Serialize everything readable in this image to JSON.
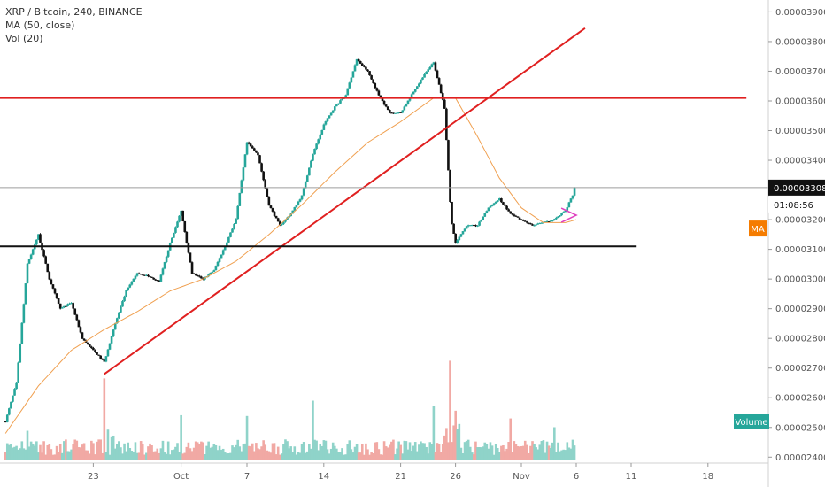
{
  "legend": {
    "symbol": "XRP / Bitcoin, 240, BINANCE",
    "ma": "MA (50, close)",
    "vol": "Vol (20)"
  },
  "tags": {
    "price": "0.00003308",
    "countdown": "01:08:56",
    "ma_tag": "MA",
    "volume_tag": "Volume"
  },
  "colors": {
    "up": "#26a69a",
    "down": "#111111",
    "vol_up": "#8fd3c9",
    "vol_down": "#f1a9a4",
    "ma_line": "#f0a050",
    "trend": "#e02020",
    "support": "#111111",
    "ma_tag_bg": "#f57c00",
    "vol_tag_bg": "#26a69a",
    "pennant": "#e040c0"
  },
  "chart_data": {
    "type": "candlestick",
    "x_tick_labels": [
      {
        "label": "23",
        "day": 23
      },
      {
        "label": "Oct",
        "day": 31
      },
      {
        "label": "7",
        "day": 37
      },
      {
        "label": "14",
        "day": 44
      },
      {
        "label": "21",
        "day": 51
      },
      {
        "label": "26",
        "day": 56
      },
      {
        "label": "Nov",
        "day": 62
      },
      {
        "label": "6",
        "day": 67
      },
      {
        "label": "11",
        "day": 72
      },
      {
        "label": "18",
        "day": 79
      }
    ],
    "x_range": [
      14.5,
      84.5
    ],
    "price_axis": {
      "ticks": [
        "0.00002400",
        "0.00002500",
        "0.00002600",
        "0.00002700",
        "0.00002800",
        "0.00002900",
        "0.00003000",
        "0.00003100",
        "0.00003200",
        "0.00003300",
        "0.00003400",
        "0.00003500",
        "0.00003600",
        "0.00003700",
        "0.00003800",
        "0.00003900"
      ],
      "min": 2.38e-05,
      "max": 3.94e-05
    },
    "price_path": [
      [
        15,
        2.52e-05
      ],
      [
        16,
        2.65e-05
      ],
      [
        17,
        3.05e-05
      ],
      [
        18,
        3.15e-05
      ],
      [
        19,
        3e-05
      ],
      [
        20,
        2.9e-05
      ],
      [
        21,
        2.92e-05
      ],
      [
        22,
        2.8e-05
      ],
      [
        23,
        2.76e-05
      ],
      [
        24,
        2.72e-05
      ],
      [
        25,
        2.85e-05
      ],
      [
        26,
        2.96e-05
      ],
      [
        27,
        3.02e-05
      ],
      [
        28,
        3.01e-05
      ],
      [
        29,
        2.99e-05
      ],
      [
        30,
        3.12e-05
      ],
      [
        31,
        3.23e-05
      ],
      [
        32,
        3.02e-05
      ],
      [
        33,
        3e-05
      ],
      [
        34,
        3.03e-05
      ],
      [
        35,
        3.11e-05
      ],
      [
        36,
        3.2e-05
      ],
      [
        37,
        3.46e-05
      ],
      [
        38,
        3.42e-05
      ],
      [
        39,
        3.25e-05
      ],
      [
        40,
        3.18e-05
      ],
      [
        41,
        3.22e-05
      ],
      [
        42,
        3.28e-05
      ],
      [
        43,
        3.42e-05
      ],
      [
        44,
        3.52e-05
      ],
      [
        45,
        3.58e-05
      ],
      [
        46,
        3.62e-05
      ],
      [
        47,
        3.74e-05
      ],
      [
        48,
        3.7e-05
      ],
      [
        49,
        3.62e-05
      ],
      [
        50,
        3.56e-05
      ],
      [
        51,
        3.56e-05
      ],
      [
        52,
        3.62e-05
      ],
      [
        53,
        3.68e-05
      ],
      [
        54,
        3.73e-05
      ],
      [
        55,
        3.58e-05
      ],
      [
        55.6,
        3.2e-05
      ],
      [
        56,
        3.12e-05
      ],
      [
        57,
        3.18e-05
      ],
      [
        58,
        3.18e-05
      ],
      [
        59,
        3.24e-05
      ],
      [
        60,
        3.27e-05
      ],
      [
        61,
        3.22e-05
      ],
      [
        62,
        3.2e-05
      ],
      [
        63,
        3.18e-05
      ],
      [
        64,
        3.19e-05
      ],
      [
        65,
        3.2e-05
      ],
      [
        66,
        3.23e-05
      ],
      [
        67,
        3.308e-05
      ]
    ],
    "ma_path": [
      [
        15,
        2.48e-05
      ],
      [
        18,
        2.64e-05
      ],
      [
        21,
        2.76e-05
      ],
      [
        24,
        2.83e-05
      ],
      [
        27,
        2.89e-05
      ],
      [
        30,
        2.96e-05
      ],
      [
        33,
        3e-05
      ],
      [
        36,
        3.06e-05
      ],
      [
        39,
        3.15e-05
      ],
      [
        42,
        3.25e-05
      ],
      [
        45,
        3.36e-05
      ],
      [
        48,
        3.46e-05
      ],
      [
        51,
        3.53e-05
      ],
      [
        54,
        3.61e-05
      ],
      [
        56,
        3.61e-05
      ],
      [
        58,
        3.48e-05
      ],
      [
        60,
        3.34e-05
      ],
      [
        62,
        3.24e-05
      ],
      [
        64,
        3.19e-05
      ],
      [
        66,
        3.19e-05
      ],
      [
        67,
        3.2e-05
      ]
    ],
    "volume_axis": {
      "min": 0,
      "max": 1
    },
    "volume_spikes": [
      [
        17,
        0.3
      ],
      [
        24,
        0.8
      ],
      [
        31,
        0.45
      ],
      [
        37,
        0.42
      ],
      [
        43,
        0.55
      ],
      [
        54,
        0.52
      ],
      [
        55.5,
        1.0
      ],
      [
        56,
        0.5
      ],
      [
        61,
        0.38
      ],
      [
        65,
        0.35
      ],
      [
        67,
        0.45
      ]
    ],
    "trend_line": {
      "from": [
        24,
        2.68e-05
      ],
      "to": [
        67.8,
        3.845e-05
      ]
    },
    "resistance_level": {
      "value": 3.61e-05,
      "from_day": 14.5,
      "to_day": 82.5
    },
    "support_level": {
      "value": 3.11e-05,
      "from_day": 14.5,
      "to_day": 72.5
    },
    "current_price": 3.308e-05,
    "current_price_day": 67,
    "ma_value": 3.2e-05
  }
}
